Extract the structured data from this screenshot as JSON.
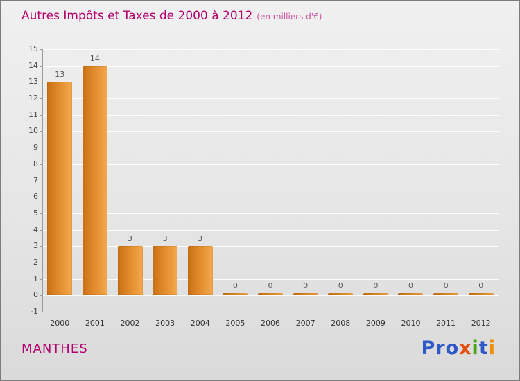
{
  "title": {
    "text": "Autres Impôts et Taxes de 2000 à 2012",
    "subtitle": "(en milliers d'€)"
  },
  "footer": {
    "entity": "MANTHES",
    "logo_letters": [
      {
        "ch": "P",
        "color": "#2e58c8"
      },
      {
        "ch": "r",
        "color": "#2e58c8"
      },
      {
        "ch": "o",
        "color": "#2e58c8"
      },
      {
        "ch": "x",
        "color": "#e44d0e"
      },
      {
        "ch": "i",
        "color": "#44a412"
      },
      {
        "ch": "t",
        "color": "#2e58c8"
      },
      {
        "ch": "i",
        "color": "#ef8d00"
      }
    ]
  },
  "chart_data": {
    "type": "bar",
    "title": "Autres Impôts et Taxes de 2000 à 2012",
    "subtitle": "(en milliers d'€)",
    "categories": [
      "2000",
      "2001",
      "2002",
      "2003",
      "2004",
      "2005",
      "2006",
      "2007",
      "2008",
      "2009",
      "2010",
      "2011",
      "2012"
    ],
    "values": [
      13,
      14,
      3,
      3,
      3,
      0,
      0,
      0,
      0,
      0,
      0,
      0,
      0
    ],
    "xlabel": "",
    "ylabel": "",
    "ylim": [
      -1,
      15
    ],
    "ytick_step": 1,
    "grid": true,
    "bar_color": "#e08a2a",
    "value_labels_shown": true
  }
}
